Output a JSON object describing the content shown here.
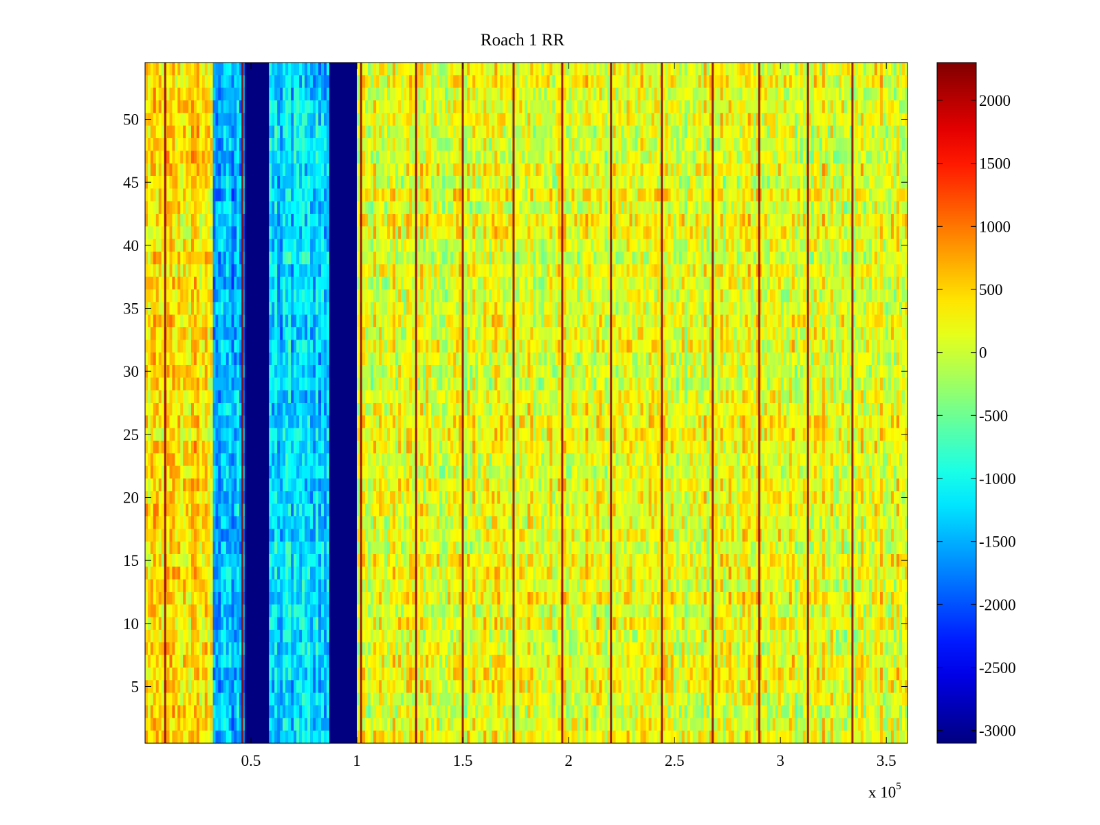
{
  "chart_data": {
    "type": "heatmap",
    "title": "Roach 1 RR",
    "xlabel": "",
    "ylabel": "",
    "x_multiplier_label": {
      "base": "x 10",
      "exponent": "5"
    },
    "xlim": [
      0,
      3.6
    ],
    "ylim": [
      0.5,
      54.5
    ],
    "x_ticks": [
      0.5,
      1,
      1.5,
      2,
      2.5,
      3,
      3.5
    ],
    "x_tick_labels": [
      "0.5",
      "1",
      "1.5",
      "2",
      "2.5",
      "3",
      "3.5"
    ],
    "y_ticks": [
      5,
      10,
      15,
      20,
      25,
      30,
      35,
      40,
      45,
      50
    ],
    "y_tick_labels": [
      "5",
      "10",
      "15",
      "20",
      "25",
      "30",
      "35",
      "40",
      "45",
      "50"
    ],
    "rows": 54,
    "colormap": "jet",
    "colorbar": {
      "range": [
        -3100,
        2300
      ],
      "ticks": [
        2000,
        1500,
        1000,
        500,
        0,
        -500,
        -1000,
        -1500,
        -2000,
        -2500,
        -3000
      ],
      "tick_labels": [
        "2000",
        "1500",
        "1000",
        "500",
        "0",
        "-500",
        "-1000",
        "-1500",
        "-2000",
        "-2500",
        "-3000"
      ]
    },
    "column_bands": [
      {
        "x": [
          0.0,
          0.32
        ],
        "value": 400,
        "note": "yellow-orange"
      },
      {
        "x": [
          0.32,
          0.47
        ],
        "value": -1500,
        "note": "blue"
      },
      {
        "x": [
          0.47,
          0.585
        ],
        "value": -3100,
        "note": "saturated dark blue"
      },
      {
        "x": [
          0.585,
          0.87
        ],
        "value": -1300,
        "note": "cyan-blue"
      },
      {
        "x": [
          0.87,
          1.0
        ],
        "value": -3100,
        "note": "saturated dark blue"
      },
      {
        "x": [
          1.0,
          3.6
        ],
        "value": 150,
        "note": "yellow-green"
      }
    ],
    "vertical_lines_x": [
      0.095,
      0.46,
      1.02,
      1.28,
      1.5,
      1.74,
      1.97,
      2.2,
      2.44,
      2.68,
      2.9,
      3.13,
      3.34
    ],
    "vertical_lines_value": 2200
  }
}
